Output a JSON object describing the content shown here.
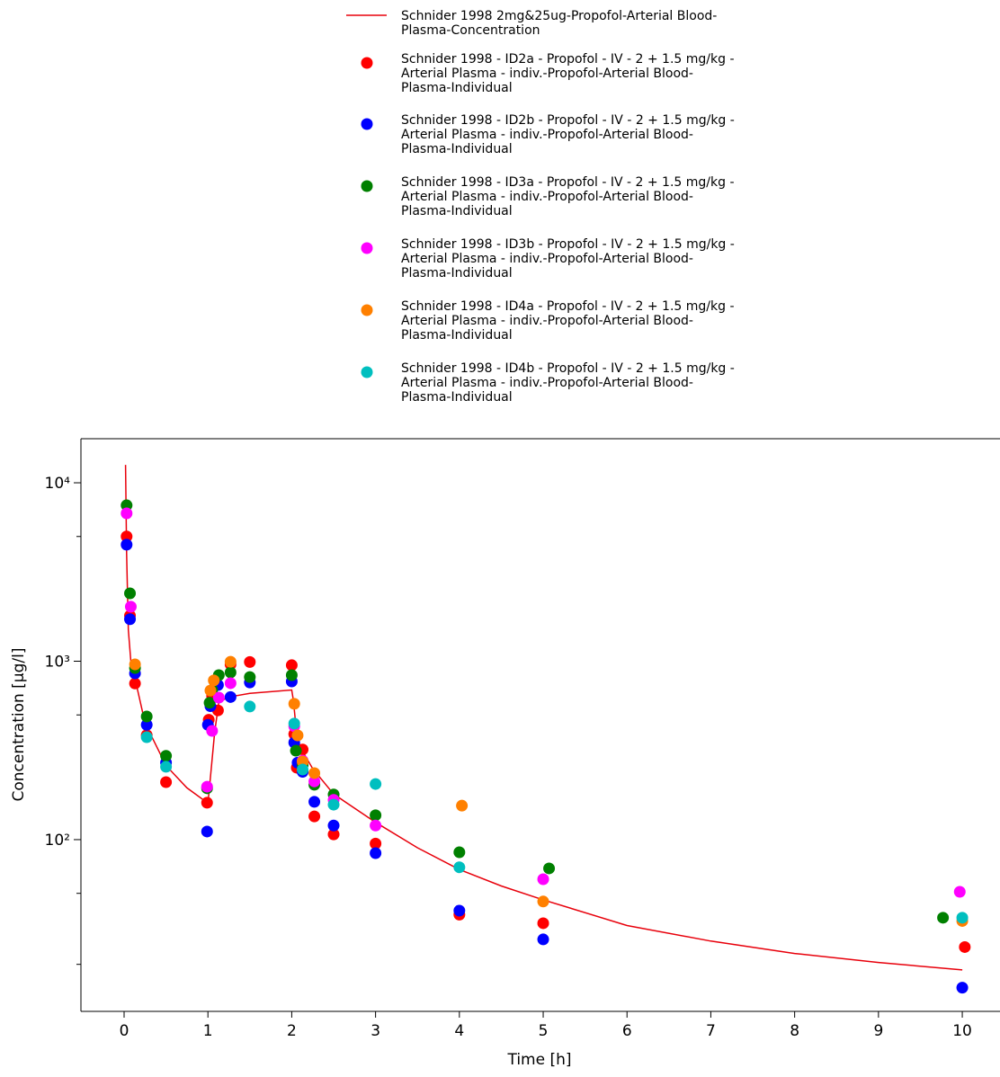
{
  "chart_data": {
    "type": "scatter",
    "x_label": "Time [h]",
    "y_label": "Concentration [µg/l]",
    "y_log": true,
    "xlim": [
      -0.515,
      10.45
    ],
    "ylim": [
      10.9,
      17660
    ],
    "xticks": [
      0,
      1,
      2,
      3,
      4,
      5,
      6,
      7,
      8,
      9,
      10
    ],
    "yticks": [
      {
        "value": 100,
        "label": "10²"
      },
      {
        "value": 1000,
        "label": "10³"
      },
      {
        "value": 10000,
        "label": "10⁴"
      }
    ],
    "yminorticks": [
      20,
      50,
      500,
      5000
    ],
    "series": [
      {
        "name": "Schnider 1998 2mg&25ug-Propofol-Arterial Blood-Plasma-Concentration",
        "type": "line",
        "color": "#e8000b",
        "x": [
          0.017,
          0.03,
          0.05,
          0.08,
          0.13,
          0.25,
          0.5,
          0.75,
          1.0,
          1.02,
          1.08,
          1.13,
          1.25,
          1.5,
          2.0,
          2.02,
          2.05,
          2.1,
          2.25,
          2.5,
          3.0,
          3.5,
          4.0,
          4.5,
          5.0,
          6.0,
          7.0,
          8.0,
          9.0,
          10.0
        ],
        "values": [
          12600,
          4000,
          1500,
          1000,
          800,
          450,
          260,
          195,
          160,
          200,
          400,
          590,
          630,
          660,
          690,
          600,
          430,
          330,
          250,
          180,
          125,
          90,
          68,
          55,
          46,
          33,
          27,
          23,
          20.5,
          18.6
        ]
      },
      {
        "name": "Schnider 1998 - ID2a - Propofol - IV - 2 + 1.5 mg/kg - Arterial Plasma - indiv.-Propofol-Arterial Blood-Plasma-Individual",
        "type": "scatter",
        "color": "#ff0000",
        "x": [
          0.03,
          0.07,
          0.13,
          0.27,
          0.5,
          0.99,
          1.01,
          1.05,
          1.12,
          1.27,
          1.5,
          2.0,
          2.03,
          2.06,
          2.13,
          2.27,
          2.5,
          3.0,
          4.0,
          5.0,
          10.03
        ],
        "values": [
          5000,
          1800,
          750,
          385,
          210,
          161,
          470,
          640,
          530,
          960,
          990,
          950,
          390,
          253,
          320,
          135,
          107,
          95,
          38,
          34,
          25
        ]
      },
      {
        "name": "Schnider 1998 - ID2b - Propofol - IV - 2 + 1.5 mg/kg - Arterial Plasma - indiv.-Propofol-Arterial Blood-Plasma-Individual",
        "type": "scatter",
        "color": "#0000ff",
        "x": [
          0.03,
          0.07,
          0.13,
          0.27,
          0.5,
          0.99,
          1.0,
          1.03,
          1.12,
          1.27,
          1.5,
          2.0,
          2.03,
          2.07,
          2.13,
          2.27,
          2.5,
          3.0,
          4.0,
          5.0,
          10.0
        ],
        "values": [
          4500,
          1720,
          855,
          440,
          270,
          111,
          440,
          560,
          735,
          630,
          760,
          770,
          350,
          270,
          240,
          163,
          120,
          84,
          40,
          27.6,
          14.8
        ]
      },
      {
        "name": "Schnider 1998 - ID3a - Propofol - IV - 2 + 1.5 mg/kg - Arterial Plasma - indiv.-Propofol-Arterial Blood-Plasma-Individual",
        "type": "scatter",
        "color": "#008000",
        "x": [
          0.03,
          0.07,
          0.13,
          0.27,
          0.5,
          0.99,
          1.02,
          1.05,
          1.13,
          1.27,
          1.5,
          2.0,
          2.05,
          2.13,
          2.27,
          2.5,
          3.0,
          4.0,
          5.07,
          9.77
        ],
        "values": [
          7480,
          2400,
          915,
          490,
          295,
          194,
          585,
          690,
          835,
          865,
          815,
          835,
          315,
          262,
          203,
          179,
          137,
          85,
          69,
          36.5
        ]
      },
      {
        "name": "Schnider 1998 - ID3b - Propofol - IV - 2 + 1.5 mg/kg - Arterial Plasma - indiv.-Propofol-Arterial Blood-Plasma-Individual",
        "type": "scatter",
        "color": "#ff00ff",
        "x": [
          0.03,
          0.08,
          0.99,
          1.05,
          1.13,
          1.27,
          2.03,
          2.13,
          2.27,
          2.5,
          3.0,
          5.0,
          9.97
        ],
        "values": [
          6740,
          2020,
          198,
          407,
          625,
          753,
          432,
          277,
          212,
          167,
          120,
          60,
          51
        ]
      },
      {
        "name": "Schnider 1998 - ID4a - Propofol - IV - 2 + 1.5 mg/kg - Arterial Plasma - indiv.-Propofol-Arterial Blood-Plasma-Individual",
        "type": "scatter",
        "color": "#ff8000",
        "x": [
          0.13,
          1.03,
          1.07,
          1.27,
          2.03,
          2.07,
          2.13,
          2.27,
          4.03,
          5.0,
          10.0
        ],
        "values": [
          960,
          685,
          780,
          993,
          577,
          384,
          274,
          236,
          155,
          45,
          35
        ]
      },
      {
        "name": "Schnider 1998 - ID4b - Propofol - IV - 2 + 1.5 mg/kg - Arterial Plasma - indiv.-Propofol-Arterial Blood-Plasma-Individual",
        "type": "scatter",
        "color": "#00bfbf",
        "x": [
          0.27,
          0.5,
          1.5,
          2.03,
          2.13,
          2.5,
          3.0,
          4.0,
          10.0
        ],
        "values": [
          375,
          256,
          557,
          447,
          247,
          157,
          205,
          70,
          36.5
        ]
      }
    ]
  }
}
